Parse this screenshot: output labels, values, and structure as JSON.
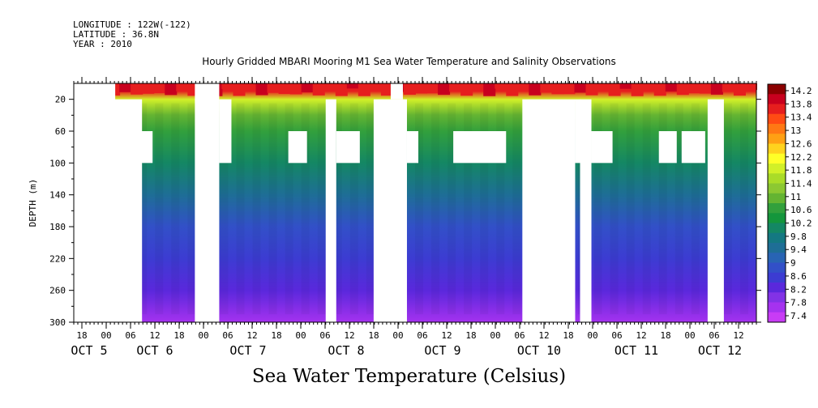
{
  "header": {
    "longitude": "LONGITUDE : 122W(-122)",
    "latitude": "LATITUDE : 36.8N",
    "year": "YEAR : 2010"
  },
  "chart_data": {
    "type": "heatmap",
    "title": "Hourly Gridded MBARI Mooring M1 Sea Water Temperature and Salinity Observations",
    "footer": "Sea Water Temperature (Celsius)",
    "ylabel": "DEPTH (m)",
    "ylim": [
      300,
      0
    ],
    "y_ticks": [
      20,
      60,
      100,
      140,
      180,
      220,
      260,
      300
    ],
    "x_hour_labels": [
      "18",
      "00",
      "06",
      "12",
      "18",
      "00",
      "06",
      "12",
      "18",
      "00",
      "06",
      "12",
      "18",
      "00",
      "06",
      "12",
      "18",
      "00",
      "06",
      "12",
      "18",
      "00",
      "06",
      "12",
      "18",
      "00",
      "06",
      "12"
    ],
    "x_day_labels": [
      "OCT  5",
      "OCT  6",
      "OCT  7",
      "OCT  8",
      "OCT  9",
      "OCT 10",
      "OCT 11",
      "OCT 12"
    ],
    "colorbar_labels": [
      "14.2",
      "13.8",
      "13.4",
      "13",
      "12.6",
      "12.2",
      "11.8",
      "11.4",
      "11",
      "10.6",
      "10.2",
      "9.8",
      "9.4",
      "9",
      "8.6",
      "8.2",
      "7.8",
      "7.4"
    ],
    "colorbar_colors": [
      "#8b0000",
      "#c8001e",
      "#e61e1e",
      "#ff4b14",
      "#ff7814",
      "#ffa014",
      "#ffd21e",
      "#ffff28",
      "#d2f028",
      "#aadc28",
      "#8cc832",
      "#64b432",
      "#32a03c",
      "#14963c",
      "#148764",
      "#147882",
      "#1e6e96",
      "#2864b4",
      "#3250c8",
      "#3c3cd2",
      "#5a28dc",
      "#8232e6",
      "#a532ef",
      "#c83cf5"
    ],
    "depth_profile": [
      {
        "depth": 10,
        "temperature": 13.6
      },
      {
        "depth": 20,
        "temperature": 11.8
      },
      {
        "depth": 40,
        "temperature": 11.0
      },
      {
        "depth": 60,
        "temperature": 10.6
      },
      {
        "depth": 100,
        "temperature": 10.0
      },
      {
        "depth": 140,
        "temperature": 9.4
      },
      {
        "depth": 180,
        "temperature": 9.0
      },
      {
        "depth": 220,
        "temperature": 8.6
      },
      {
        "depth": 260,
        "temperature": 8.2
      },
      {
        "depth": 300,
        "temperature": 7.8
      }
    ],
    "missing_data": [
      {
        "t0": 0,
        "t1": 51,
        "d0": 0,
        "d1": 300
      },
      {
        "t0": 0,
        "t1": 84,
        "d0": 20,
        "d1": 300
      },
      {
        "t0": 83,
        "t1": 97,
        "d0": 60,
        "d1": 100
      },
      {
        "t0": 149,
        "t1": 179,
        "d0": 0,
        "d1": 300
      },
      {
        "t0": 179,
        "t1": 194,
        "d0": 20,
        "d1": 100
      },
      {
        "t0": 264,
        "t1": 287,
        "d0": 60,
        "d1": 100
      },
      {
        "t0": 310,
        "t1": 323,
        "d0": 20,
        "d1": 300
      },
      {
        "t0": 323,
        "t1": 352,
        "d0": 60,
        "d1": 100
      },
      {
        "t0": 369,
        "t1": 410,
        "d0": 20,
        "d1": 300
      },
      {
        "t0": 390,
        "t1": 405,
        "d0": 0,
        "d1": 20
      },
      {
        "t0": 410,
        "t1": 424,
        "d0": 60,
        "d1": 100
      },
      {
        "t0": 467,
        "t1": 532,
        "d0": 60,
        "d1": 100
      },
      {
        "t0": 552,
        "t1": 617,
        "d0": 20,
        "d1": 300
      },
      {
        "t0": 617,
        "t1": 624,
        "d0": 20,
        "d1": 100
      },
      {
        "t0": 623,
        "t1": 637,
        "d0": 20,
        "d1": 300
      },
      {
        "t0": 637,
        "t1": 663,
        "d0": 60,
        "d1": 100
      },
      {
        "t0": 720,
        "t1": 742,
        "d0": 60,
        "d1": 100
      },
      {
        "t0": 748,
        "t1": 777,
        "d0": 60,
        "d1": 100
      },
      {
        "t0": 780,
        "t1": 800,
        "d0": 20,
        "d1": 300
      }
    ]
  }
}
